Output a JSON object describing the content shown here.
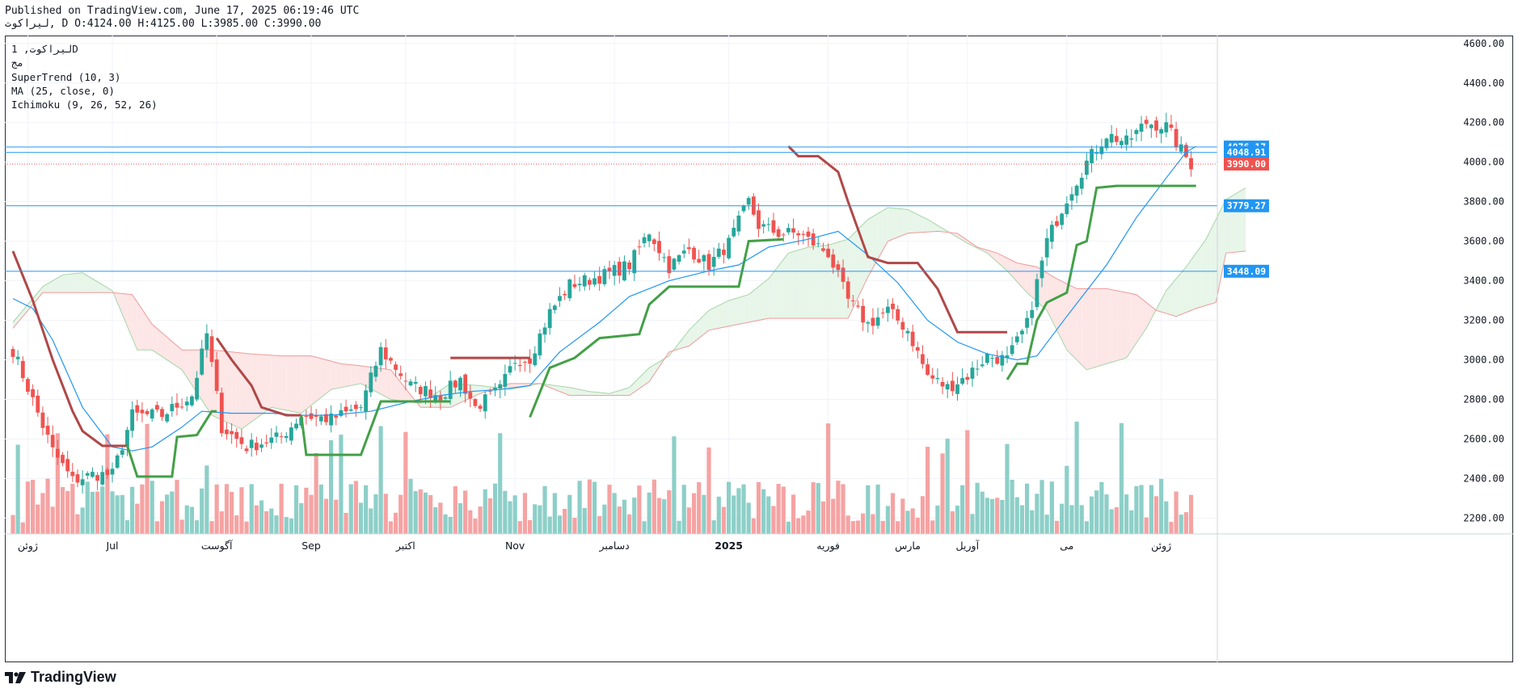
{
  "header": {
    "published": "Published on TradingView.com, June 17, 2025 06:19:46 UTC",
    "ohlc_line": "لیراکوت, D O:4124.00 H:4125.00 L:3985.00 C:3990.00"
  },
  "legend": {
    "symbol": "لیراکوت, 1D",
    "exchange": "مج",
    "supertrend": "SuperTrend (10, 3)",
    "ma": "MA (25, close, 0)",
    "ichimoku": "Ichimoku (9, 26, 52, 26)"
  },
  "footer": {
    "brand": "TradingView"
  },
  "colors": {
    "up": "#26a69a",
    "down": "#ef5350",
    "up_volume": "#8dcfc8",
    "down_volume": "#f5a3a3",
    "ma": "#2196f3",
    "supertrend_up": "#43a047",
    "supertrend_down": "#b04848",
    "cloud_up": "#e8f5e9",
    "cloud_down": "#fde6e6",
    "hline": "#2196f3"
  },
  "chart_data": {
    "type": "candlestick",
    "y_axis": {
      "ylim": [
        2120,
        4640
      ],
      "ticks": [
        2200,
        2400,
        2600,
        2800,
        3000,
        3200,
        3400,
        3600,
        3800,
        4000,
        4200,
        4400,
        4600
      ]
    },
    "x_axis": {
      "labels": [
        {
          "label": "ژوئن",
          "bar": 3
        },
        {
          "label": "Jul",
          "bar": 20
        },
        {
          "label": "آگوست",
          "bar": 41
        },
        {
          "label": "Sep",
          "bar": 60
        },
        {
          "label": "اکتبر",
          "bar": 79
        },
        {
          "label": "Nov",
          "bar": 101
        },
        {
          "label": "دسامبر",
          "bar": 121
        },
        {
          "label": "2025",
          "bar": 144
        },
        {
          "label": "فوریه",
          "bar": 164
        },
        {
          "label": "مارس",
          "bar": 180
        },
        {
          "label": "آوریل",
          "bar": 192
        },
        {
          "label": "می",
          "bar": 212
        },
        {
          "label": "ژوئن",
          "bar": 231
        }
      ]
    },
    "horizontal_lines": [
      4076.17,
      4048.91,
      3779.27,
      3448.09
    ],
    "last_price_line": 3990.0,
    "price_labels": [
      {
        "text": "4076.17",
        "value": 4076.17,
        "color": "#2196f3"
      },
      {
        "text": "4048.91",
        "value": 4048.91,
        "color": "#2196f3"
      },
      {
        "text": "3990.00",
        "value": 3990.0,
        "color": "#ef5350"
      },
      {
        "text": "3779.27",
        "value": 3779.27,
        "color": "#2196f3"
      },
      {
        "text": "3448.09",
        "value": 3448.09,
        "color": "#2196f3"
      }
    ],
    "close_anchors": [
      [
        0,
        3050
      ],
      [
        8,
        2540
      ],
      [
        12,
        2390
      ],
      [
        16,
        2420
      ],
      [
        20,
        2420
      ],
      [
        24,
        2720
      ],
      [
        30,
        2720
      ],
      [
        36,
        2820
      ],
      [
        39,
        3130
      ],
      [
        42,
        2660
      ],
      [
        47,
        2560
      ],
      [
        54,
        2610
      ],
      [
        58,
        2720
      ],
      [
        64,
        2700
      ],
      [
        70,
        2760
      ],
      [
        74,
        3050
      ],
      [
        80,
        2870
      ],
      [
        86,
        2820
      ],
      [
        90,
        2900
      ],
      [
        93,
        2760
      ],
      [
        98,
        2850
      ],
      [
        101,
        3000
      ],
      [
        104,
        3010
      ],
      [
        108,
        3240
      ],
      [
        112,
        3380
      ],
      [
        118,
        3420
      ],
      [
        124,
        3480
      ],
      [
        128,
        3650
      ],
      [
        132,
        3470
      ],
      [
        136,
        3560
      ],
      [
        140,
        3480
      ],
      [
        144,
        3590
      ],
      [
        148,
        3800
      ],
      [
        150,
        3680
      ],
      [
        154,
        3640
      ],
      [
        158,
        3640
      ],
      [
        164,
        3540
      ],
      [
        168,
        3300
      ],
      [
        172,
        3180
      ],
      [
        176,
        3250
      ],
      [
        180,
        3150
      ],
      [
        184,
        2920
      ],
      [
        188,
        2860
      ],
      [
        192,
        2920
      ],
      [
        196,
        3020
      ],
      [
        200,
        3000
      ],
      [
        204,
        3180
      ],
      [
        208,
        3600
      ],
      [
        212,
        3820
      ],
      [
        216,
        4000
      ],
      [
        220,
        4140
      ],
      [
        224,
        4100
      ],
      [
        228,
        4200
      ],
      [
        232,
        4180
      ],
      [
        235,
        4060
      ],
      [
        237,
        3990
      ]
    ],
    "supertrend": {
      "down_segments": [
        [
          [
            0,
            3550
          ],
          [
            4,
            3300
          ],
          [
            8,
            3000
          ],
          [
            12,
            2740
          ],
          [
            14,
            2640
          ],
          [
            18,
            2565
          ],
          [
            23,
            2565
          ]
        ],
        [
          [
            41,
            3110
          ],
          [
            44,
            3000
          ],
          [
            48,
            2870
          ],
          [
            50,
            2760
          ],
          [
            55,
            2720
          ],
          [
            58,
            2720
          ]
        ],
        [
          [
            88,
            3010
          ],
          [
            104,
            3010
          ]
        ],
        [
          [
            156,
            4080
          ],
          [
            158,
            4030
          ],
          [
            162,
            4030
          ],
          [
            166,
            3950
          ],
          [
            168,
            3800
          ],
          [
            172,
            3520
          ],
          [
            176,
            3490
          ],
          [
            182,
            3490
          ],
          [
            186,
            3360
          ],
          [
            190,
            3140
          ],
          [
            200,
            3140
          ]
        ]
      ],
      "up_segments": [
        [
          [
            23,
            2565
          ],
          [
            25,
            2410
          ],
          [
            32,
            2410
          ],
          [
            33,
            2610
          ],
          [
            37,
            2620
          ],
          [
            40,
            2740
          ],
          [
            41,
            2740
          ]
        ],
        [
          [
            58,
            2720
          ],
          [
            59,
            2520
          ],
          [
            70,
            2520
          ],
          [
            74,
            2790
          ],
          [
            88,
            2790
          ]
        ],
        [
          [
            104,
            2710
          ],
          [
            108,
            2960
          ],
          [
            113,
            3010
          ],
          [
            118,
            3110
          ],
          [
            126,
            3130
          ],
          [
            128,
            3280
          ],
          [
            132,
            3370
          ],
          [
            146,
            3370
          ],
          [
            148,
            3600
          ],
          [
            155,
            3610
          ]
        ],
        [
          [
            200,
            2900
          ],
          [
            202,
            2980
          ],
          [
            204,
            2980
          ],
          [
            206,
            3200
          ],
          [
            208,
            3290
          ],
          [
            212,
            3340
          ],
          [
            214,
            3580
          ],
          [
            216,
            3600
          ],
          [
            218,
            3870
          ],
          [
            222,
            3880
          ],
          [
            238,
            3880
          ]
        ]
      ]
    },
    "ma_anchors": [
      [
        0,
        3310
      ],
      [
        4,
        3260
      ],
      [
        8,
        3100
      ],
      [
        14,
        2760
      ],
      [
        20,
        2560
      ],
      [
        24,
        2540
      ],
      [
        28,
        2560
      ],
      [
        34,
        2660
      ],
      [
        38,
        2740
      ],
      [
        44,
        2730
      ],
      [
        52,
        2730
      ],
      [
        58,
        2720
      ],
      [
        64,
        2720
      ],
      [
        72,
        2740
      ],
      [
        80,
        2790
      ],
      [
        86,
        2820
      ],
      [
        92,
        2840
      ],
      [
        98,
        2850
      ],
      [
        104,
        2870
      ],
      [
        110,
        3040
      ],
      [
        118,
        3190
      ],
      [
        124,
        3320
      ],
      [
        132,
        3400
      ],
      [
        140,
        3450
      ],
      [
        146,
        3480
      ],
      [
        152,
        3570
      ],
      [
        160,
        3610
      ],
      [
        166,
        3650
      ],
      [
        172,
        3530
      ],
      [
        178,
        3390
      ],
      [
        184,
        3200
      ],
      [
        190,
        3090
      ],
      [
        196,
        3030
      ],
      [
        202,
        3000
      ],
      [
        206,
        3020
      ],
      [
        212,
        3220
      ],
      [
        220,
        3480
      ],
      [
        226,
        3720
      ],
      [
        232,
        3920
      ],
      [
        236,
        4050
      ],
      [
        238,
        4080
      ]
    ],
    "cloud": {
      "span_a": [
        [
          0,
          3190
        ],
        [
          6,
          3370
        ],
        [
          10,
          3430
        ],
        [
          14,
          3440
        ],
        [
          20,
          3350
        ],
        [
          25,
          3050
        ],
        [
          28,
          3050
        ],
        [
          34,
          2950
        ],
        [
          40,
          2720
        ],
        [
          46,
          2650
        ],
        [
          52,
          2760
        ],
        [
          58,
          2730
        ],
        [
          64,
          2850
        ],
        [
          70,
          2880
        ],
        [
          76,
          2800
        ],
        [
          82,
          2780
        ],
        [
          88,
          2880
        ],
        [
          94,
          2870
        ],
        [
          100,
          2850
        ],
        [
          106,
          2880
        ],
        [
          112,
          2860
        ],
        [
          116,
          2840
        ],
        [
          120,
          2830
        ],
        [
          124,
          2860
        ],
        [
          128,
          2960
        ],
        [
          132,
          3020
        ],
        [
          136,
          3150
        ],
        [
          140,
          3250
        ],
        [
          144,
          3300
        ],
        [
          148,
          3330
        ],
        [
          152,
          3410
        ],
        [
          156,
          3540
        ],
        [
          160,
          3570
        ],
        [
          164,
          3580
        ],
        [
          168,
          3610
        ],
        [
          172,
          3710
        ],
        [
          176,
          3770
        ],
        [
          180,
          3760
        ],
        [
          184,
          3710
        ],
        [
          188,
          3650
        ],
        [
          192,
          3590
        ],
        [
          196,
          3540
        ],
        [
          200,
          3450
        ],
        [
          204,
          3340
        ],
        [
          208,
          3250
        ],
        [
          212,
          3050
        ],
        [
          216,
          2950
        ],
        [
          220,
          2980
        ],
        [
          224,
          3010
        ],
        [
          228,
          3160
        ],
        [
          232,
          3350
        ],
        [
          236,
          3470
        ],
        [
          240,
          3610
        ],
        [
          244,
          3810
        ],
        [
          248,
          3870
        ]
      ],
      "span_b": [
        [
          0,
          3160
        ],
        [
          6,
          3340
        ],
        [
          12,
          3340
        ],
        [
          20,
          3340
        ],
        [
          24,
          3330
        ],
        [
          28,
          3180
        ],
        [
          34,
          3050
        ],
        [
          40,
          3050
        ],
        [
          48,
          3030
        ],
        [
          54,
          3020
        ],
        [
          60,
          3020
        ],
        [
          66,
          2980
        ],
        [
          70,
          2970
        ],
        [
          76,
          2950
        ],
        [
          82,
          2760
        ],
        [
          88,
          2760
        ],
        [
          94,
          2830
        ],
        [
          100,
          2880
        ],
        [
          106,
          2880
        ],
        [
          112,
          2820
        ],
        [
          120,
          2820
        ],
        [
          124,
          2820
        ],
        [
          128,
          2890
        ],
        [
          132,
          3040
        ],
        [
          136,
          3070
        ],
        [
          140,
          3150
        ],
        [
          144,
          3170
        ],
        [
          148,
          3190
        ],
        [
          152,
          3210
        ],
        [
          160,
          3210
        ],
        [
          168,
          3210
        ],
        [
          172,
          3420
        ],
        [
          176,
          3600
        ],
        [
          180,
          3640
        ],
        [
          186,
          3650
        ],
        [
          190,
          3640
        ],
        [
          194,
          3570
        ],
        [
          198,
          3540
        ],
        [
          202,
          3490
        ],
        [
          206,
          3470
        ],
        [
          210,
          3410
        ],
        [
          214,
          3360
        ],
        [
          220,
          3360
        ],
        [
          226,
          3330
        ],
        [
          230,
          3250
        ],
        [
          234,
          3220
        ],
        [
          238,
          3260
        ],
        [
          242,
          3290
        ],
        [
          244,
          3540
        ],
        [
          248,
          3550
        ]
      ]
    }
  }
}
